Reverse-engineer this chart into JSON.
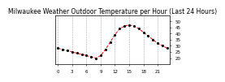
{
  "title": "Milwaukee Weather Outdoor Temperature per Hour (Last 24 Hours)",
  "hours": [
    0,
    1,
    2,
    3,
    4,
    5,
    6,
    7,
    8,
    9,
    10,
    11,
    12,
    13,
    14,
    15,
    16,
    17,
    18,
    19,
    20,
    21,
    22,
    23
  ],
  "temps": [
    28,
    27,
    26,
    25,
    24,
    23,
    22,
    21,
    20,
    22,
    27,
    33,
    39,
    44,
    46,
    47,
    46,
    44,
    41,
    38,
    35,
    32,
    30,
    28
  ],
  "xtick_positions": [
    0,
    3,
    6,
    9,
    12,
    15,
    18,
    21
  ],
  "xtick_labels": [
    "0",
    "3",
    "6",
    "9",
    "12",
    "15",
    "18",
    "21"
  ],
  "ylim": [
    15,
    55
  ],
  "yticks": [
    20,
    25,
    30,
    35,
    40,
    45,
    50
  ],
  "ytick_labels": [
    "20",
    "25",
    "30",
    "35",
    "40",
    "45",
    "50"
  ],
  "line_color": "#ff0000",
  "marker_color": "#000000",
  "bg_color": "#ffffff",
  "grid_color": "#888888",
  "title_fontsize": 5.5,
  "tick_fontsize": 4.0
}
